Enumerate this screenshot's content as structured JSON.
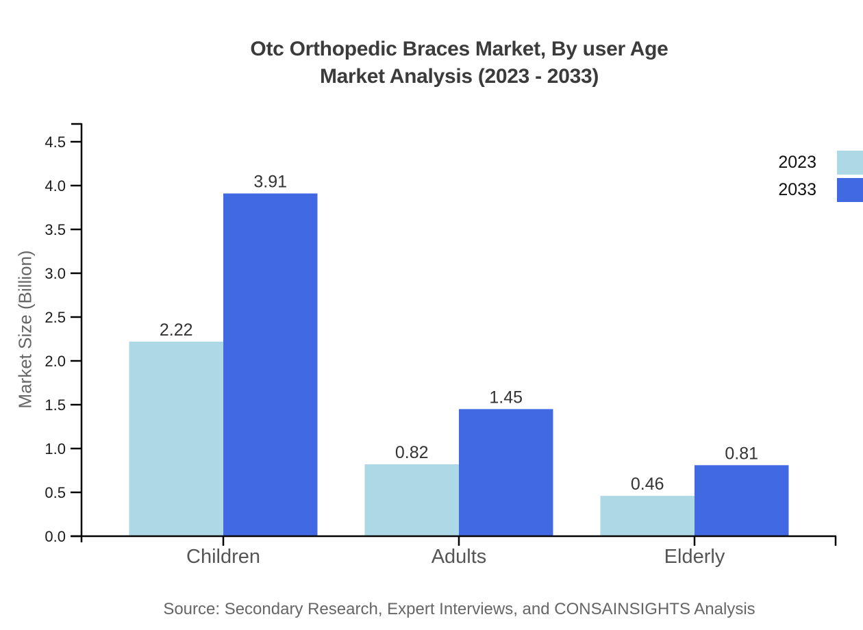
{
  "title": {
    "line1": "Otc Orthopedic Braces Market, By user Age",
    "line2": "Market Analysis (2023 - 2033)"
  },
  "source": "Source: Secondary Research, Expert Interviews, and CONSAINSIGHTS Analysis",
  "chart_data": {
    "type": "bar",
    "title": "Otc Orthopedic Braces Market, By user Age Market Analysis (2023 - 2033)",
    "categories": [
      "Children",
      "Adults",
      "Elderly"
    ],
    "series": [
      {
        "name": "2023",
        "color": "#ADD8E6",
        "values": [
          2.22,
          0.82,
          0.46
        ]
      },
      {
        "name": "2033",
        "color": "#4169E1",
        "values": [
          3.91,
          1.45,
          0.81
        ]
      }
    ],
    "xlabel": "",
    "ylabel": "Market Size (Billion)",
    "ylim": [
      0,
      4.5
    ],
    "yticks": [
      0.0,
      0.5,
      1.0,
      1.5,
      2.0,
      2.5,
      3.0,
      3.5,
      4.0,
      4.5
    ],
    "grid": false,
    "legend_position": "top-right",
    "value_labels_shown": true
  },
  "colors": {
    "background": "#ffffff",
    "axis": "#000000",
    "title": "#3b3b3b",
    "category_label": "#555555",
    "value_label": "#333333",
    "tick_label": "#1a1a1a",
    "muted": "#666666"
  }
}
